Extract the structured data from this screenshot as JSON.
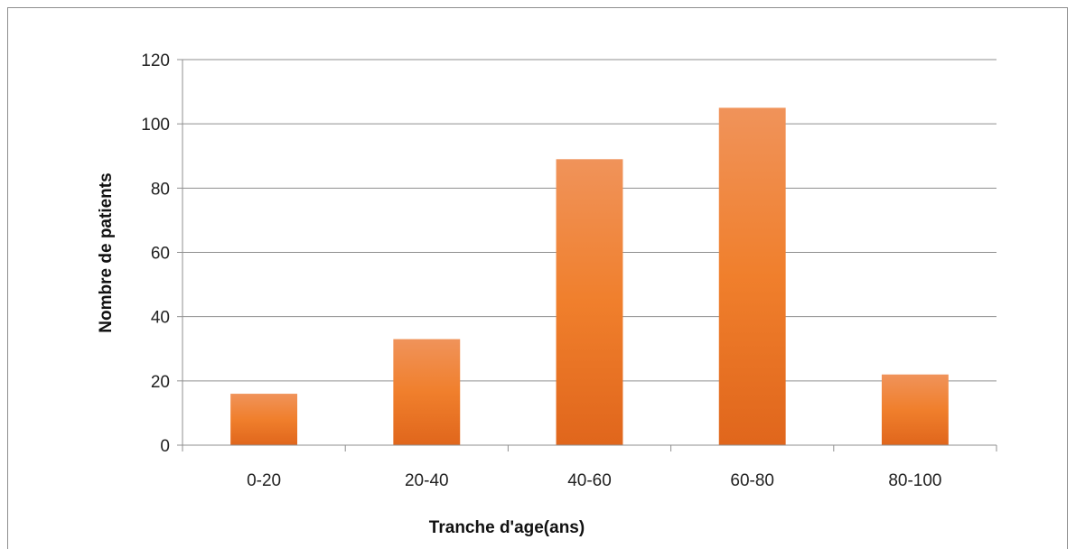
{
  "chart_data": {
    "type": "bar",
    "title": "",
    "xlabel": "Tranche d'age(ans)",
    "ylabel": "Nombre de patients",
    "categories": [
      "0-20",
      "20-40",
      "40-60",
      "60-80",
      "80-100"
    ],
    "values": [
      16,
      33,
      89,
      105,
      22
    ],
    "ylim": [
      0,
      120
    ],
    "yticks": [
      0,
      20,
      40,
      60,
      80,
      100,
      120
    ],
    "grid": true,
    "legend": "none",
    "colors": {
      "bar_top": "#f0935a",
      "bar_mid": "#f07f2c",
      "bar_bottom": "#e0661c",
      "grid": "#8f8f8f",
      "frame": "#8f8f8f"
    }
  }
}
